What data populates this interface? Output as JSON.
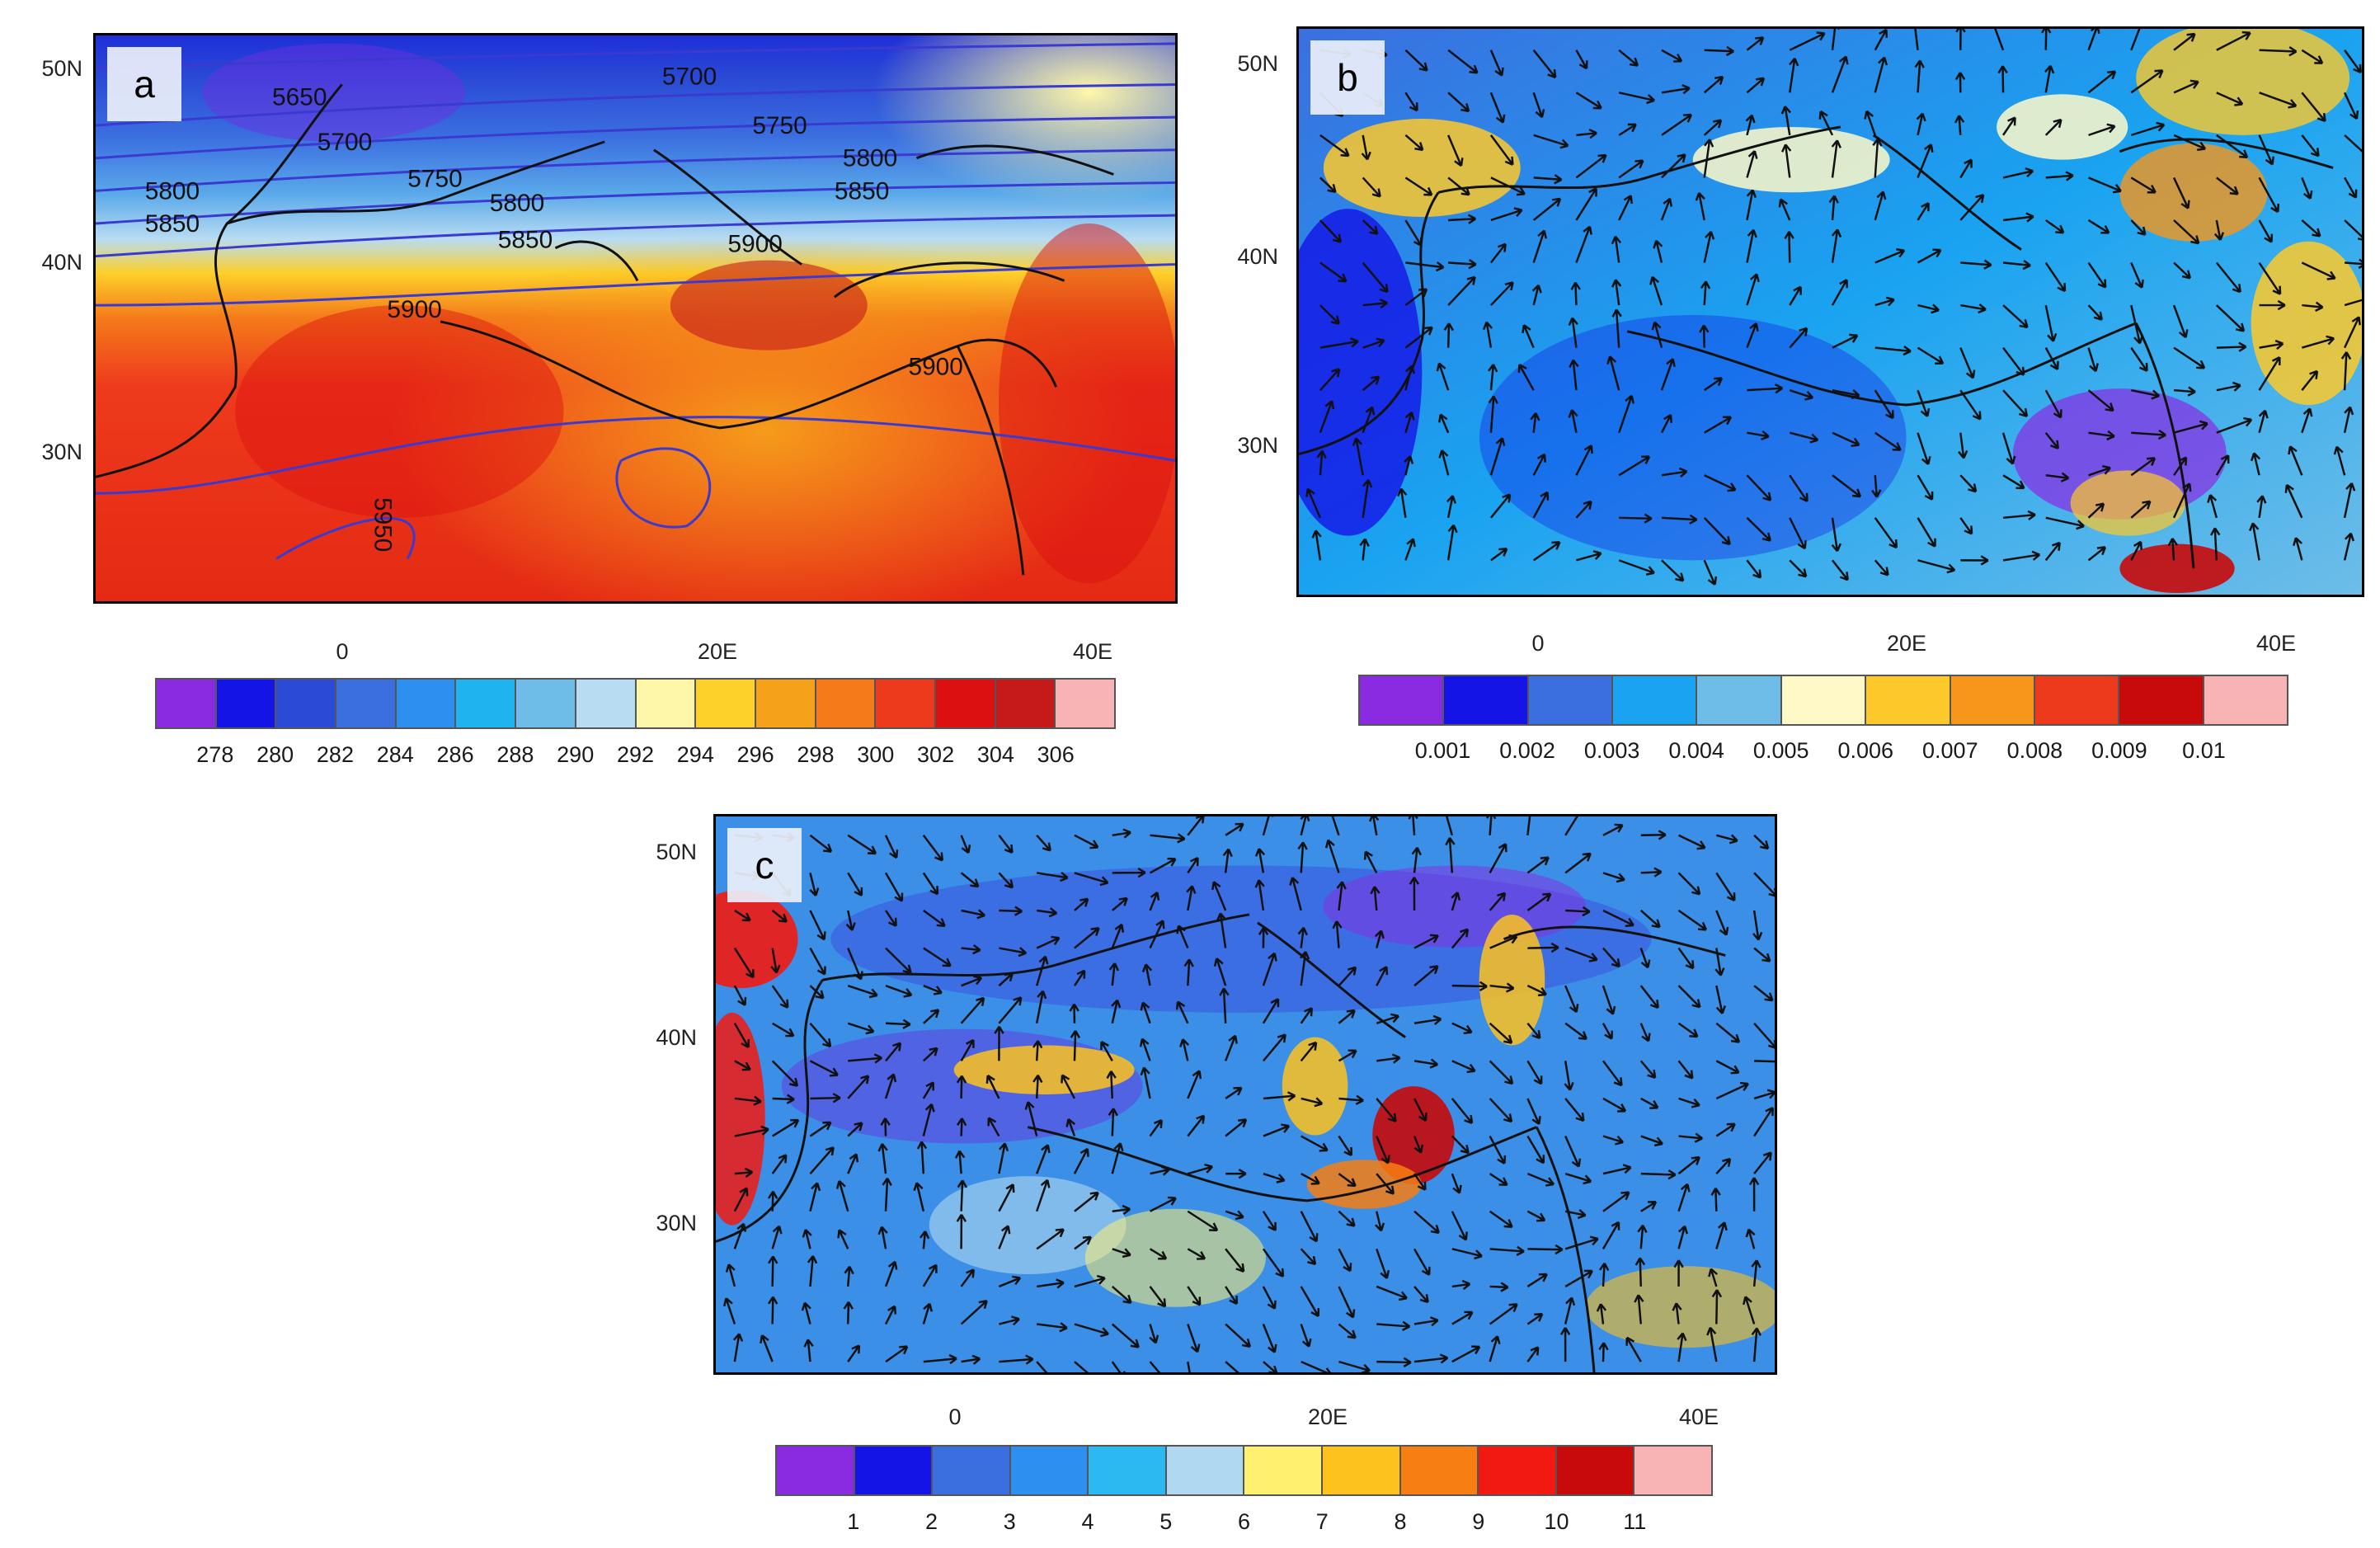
{
  "panels": [
    {
      "tag": "a",
      "lat_labels": [
        "50N",
        "40N",
        "30N"
      ],
      "lon_labels": [
        "0",
        "20E",
        "40E"
      ],
      "contour_labels": [
        "5650",
        "5700",
        "5700",
        "5750",
        "5750",
        "5800",
        "5800",
        "5850",
        "5800",
        "5850",
        "5850",
        "5900",
        "5900",
        "5900",
        "5950"
      ],
      "colorbar": {
        "colors": [
          "#8a2be2",
          "#1414e6",
          "#2b4bd6",
          "#3b6fe0",
          "#2d8ff0",
          "#1fb4f0",
          "#6dbde8",
          "#b8dcf2",
          "#fff7a8",
          "#fdd02a",
          "#f6a11a",
          "#f47a1a",
          "#ee3a1c",
          "#dc1010",
          "#c61a1a",
          "#f8b4b4"
        ],
        "labels": [
          "278",
          "280",
          "282",
          "284",
          "286",
          "288",
          "290",
          "292",
          "294",
          "296",
          "298",
          "300",
          "302",
          "304",
          "306"
        ]
      }
    },
    {
      "tag": "b",
      "lat_labels": [
        "50N",
        "40N",
        "30N"
      ],
      "lon_labels": [
        "0",
        "20E",
        "40E"
      ],
      "colorbar": {
        "colors": [
          "#8a2be2",
          "#1414e6",
          "#3b6fe0",
          "#19a3f0",
          "#6dbde8",
          "#fff9c8",
          "#fdc92a",
          "#f6961a",
          "#ee3a1c",
          "#c80a0a",
          "#f8b4b4"
        ],
        "labels": [
          "0.001",
          "0.002",
          "0.003",
          "0.004",
          "0.005",
          "0.006",
          "0.007",
          "0.008",
          "0.009",
          "0.01"
        ]
      }
    },
    {
      "tag": "c",
      "lat_labels": [
        "50N",
        "40N",
        "30N"
      ],
      "lon_labels": [
        "0",
        "20E",
        "40E"
      ],
      "colorbar": {
        "colors": [
          "#8a2be2",
          "#1414e6",
          "#3b6fe0",
          "#2d8ff0",
          "#2cb8f0",
          "#b0d8f0",
          "#fff070",
          "#fdc21e",
          "#f67e12",
          "#f21a10",
          "#c80a0a",
          "#f8b4b4"
        ],
        "labels": [
          "1",
          "2",
          "3",
          "4",
          "5",
          "6",
          "7",
          "8",
          "9",
          "10",
          "11"
        ]
      }
    }
  ]
}
